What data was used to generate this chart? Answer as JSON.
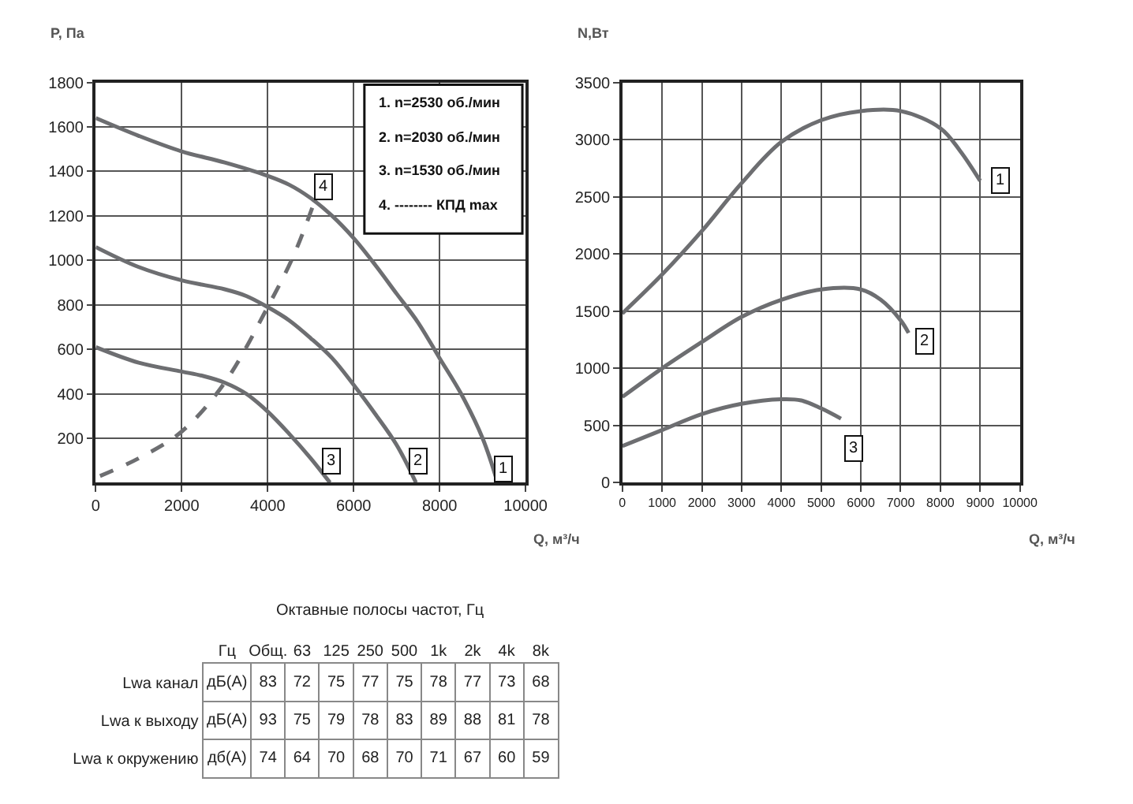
{
  "chart_data": [
    {
      "type": "line",
      "xlabel": "Q, м³/ч",
      "ylabel": "P, Па",
      "xlim": [
        0,
        10000
      ],
      "ylim": [
        0,
        1800
      ],
      "xticks": [
        0,
        2000,
        4000,
        6000,
        8000,
        10000
      ],
      "yticks": [
        200,
        400,
        600,
        800,
        1000,
        1200,
        1400,
        1600,
        1800
      ],
      "grid": true,
      "marker": "none",
      "series": [
        {
          "color": "#6d6e71",
          "line_style": "solid",
          "x": [
            0,
            1000,
            2000,
            3000,
            4000,
            4500,
            5000,
            5500,
            6000,
            6500,
            7000,
            7500,
            8000,
            8500,
            9000,
            9350
          ],
          "values": [
            1640,
            1560,
            1490,
            1440,
            1380,
            1340,
            1280,
            1200,
            1100,
            980,
            850,
            720,
            560,
            400,
            200,
            0
          ]
        },
        {
          "color": "#6d6e71",
          "line_style": "solid",
          "x": [
            0,
            1000,
            2000,
            3000,
            3500,
            4000,
            4500,
            5000,
            5500,
            6000,
            6500,
            7000,
            7450
          ],
          "values": [
            1060,
            970,
            910,
            870,
            840,
            790,
            730,
            650,
            560,
            440,
            310,
            170,
            0
          ]
        },
        {
          "color": "#6d6e71",
          "line_style": "solid",
          "x": [
            0,
            1000,
            2000,
            2500,
            3000,
            3500,
            4000,
            4500,
            5000,
            5450
          ],
          "values": [
            610,
            540,
            500,
            480,
            450,
            400,
            320,
            220,
            110,
            0
          ]
        },
        {
          "color": "#6d6e71",
          "line_style": "dashed",
          "x": [
            100,
            1000,
            2000,
            3000,
            4000,
            4600,
            5100
          ],
          "values": [
            30,
            110,
            230,
            450,
            790,
            1020,
            1270
          ]
        }
      ],
      "annotations": [
        "1. n=2530 об./мин",
        "2. n=2030 об./мин",
        "3. n=1530 об./мин",
        "4. -------- КПД max",
        {
          "text": "1",
          "x": 9500,
          "y": 60
        },
        {
          "text": "2",
          "x": 7500,
          "y": 100
        },
        {
          "text": "3",
          "x": 5500,
          "y": 100
        },
        {
          "text": "4",
          "x": 5300,
          "y": 1330
        }
      ]
    },
    {
      "type": "line",
      "xlabel": "Q, м³/ч",
      "ylabel": "N,Вт",
      "xlim": [
        0,
        10000
      ],
      "ylim": [
        0,
        3500
      ],
      "xticks": [
        0,
        1000,
        2000,
        3000,
        4000,
        5000,
        6000,
        7000,
        8000,
        9000,
        10000
      ],
      "yticks": [
        0,
        500,
        1000,
        1500,
        2000,
        2500,
        3000,
        3500
      ],
      "grid": true,
      "marker": "none",
      "series": [
        {
          "color": "#6d6e71",
          "line_style": "solid",
          "x": [
            0,
            1000,
            2000,
            3000,
            4000,
            5000,
            6000,
            7000,
            8000,
            8500,
            9000
          ],
          "values": [
            1480,
            1820,
            2200,
            2620,
            2980,
            3170,
            3250,
            3250,
            3100,
            2900,
            2640
          ]
        },
        {
          "color": "#6d6e71",
          "line_style": "solid",
          "x": [
            0,
            1000,
            2000,
            3000,
            4000,
            5000,
            6000,
            6500,
            7000,
            7200
          ],
          "values": [
            750,
            1000,
            1230,
            1450,
            1600,
            1690,
            1690,
            1600,
            1420,
            1310
          ]
        },
        {
          "color": "#6d6e71",
          "line_style": "solid",
          "x": [
            0,
            1000,
            2000,
            3000,
            4000,
            4500,
            5000,
            5500
          ],
          "values": [
            320,
            460,
            600,
            690,
            730,
            720,
            650,
            560
          ]
        }
      ],
      "annotations": [
        {
          "text": "1",
          "x": 9500,
          "y": 2640
        },
        {
          "text": "2",
          "x": 7600,
          "y": 1240
        },
        {
          "text": "3",
          "x": 5800,
          "y": 300
        }
      ]
    },
    {
      "type": "heatmap",
      "data_labels": true,
      "annotations": [
        "Октавные полосы частот, Гц",
        "Гц"
      ],
      "categories": [
        "Общ.",
        "63",
        "125",
        "250",
        "500",
        "1k",
        "2k",
        "4k",
        "8k"
      ],
      "y_categories": [
        "Lwa канал",
        "Lwa к выходу",
        "Lwa к окружению"
      ],
      "y2_categories": [
        "дБ(А)",
        "дБ(А)",
        "дб(А)"
      ],
      "cells": [
        [
          83,
          72,
          75,
          77,
          75,
          78,
          77,
          73,
          68
        ],
        [
          93,
          75,
          79,
          78,
          83,
          89,
          88,
          81,
          78
        ],
        [
          74,
          64,
          70,
          68,
          70,
          71,
          67,
          60,
          59
        ]
      ]
    }
  ]
}
